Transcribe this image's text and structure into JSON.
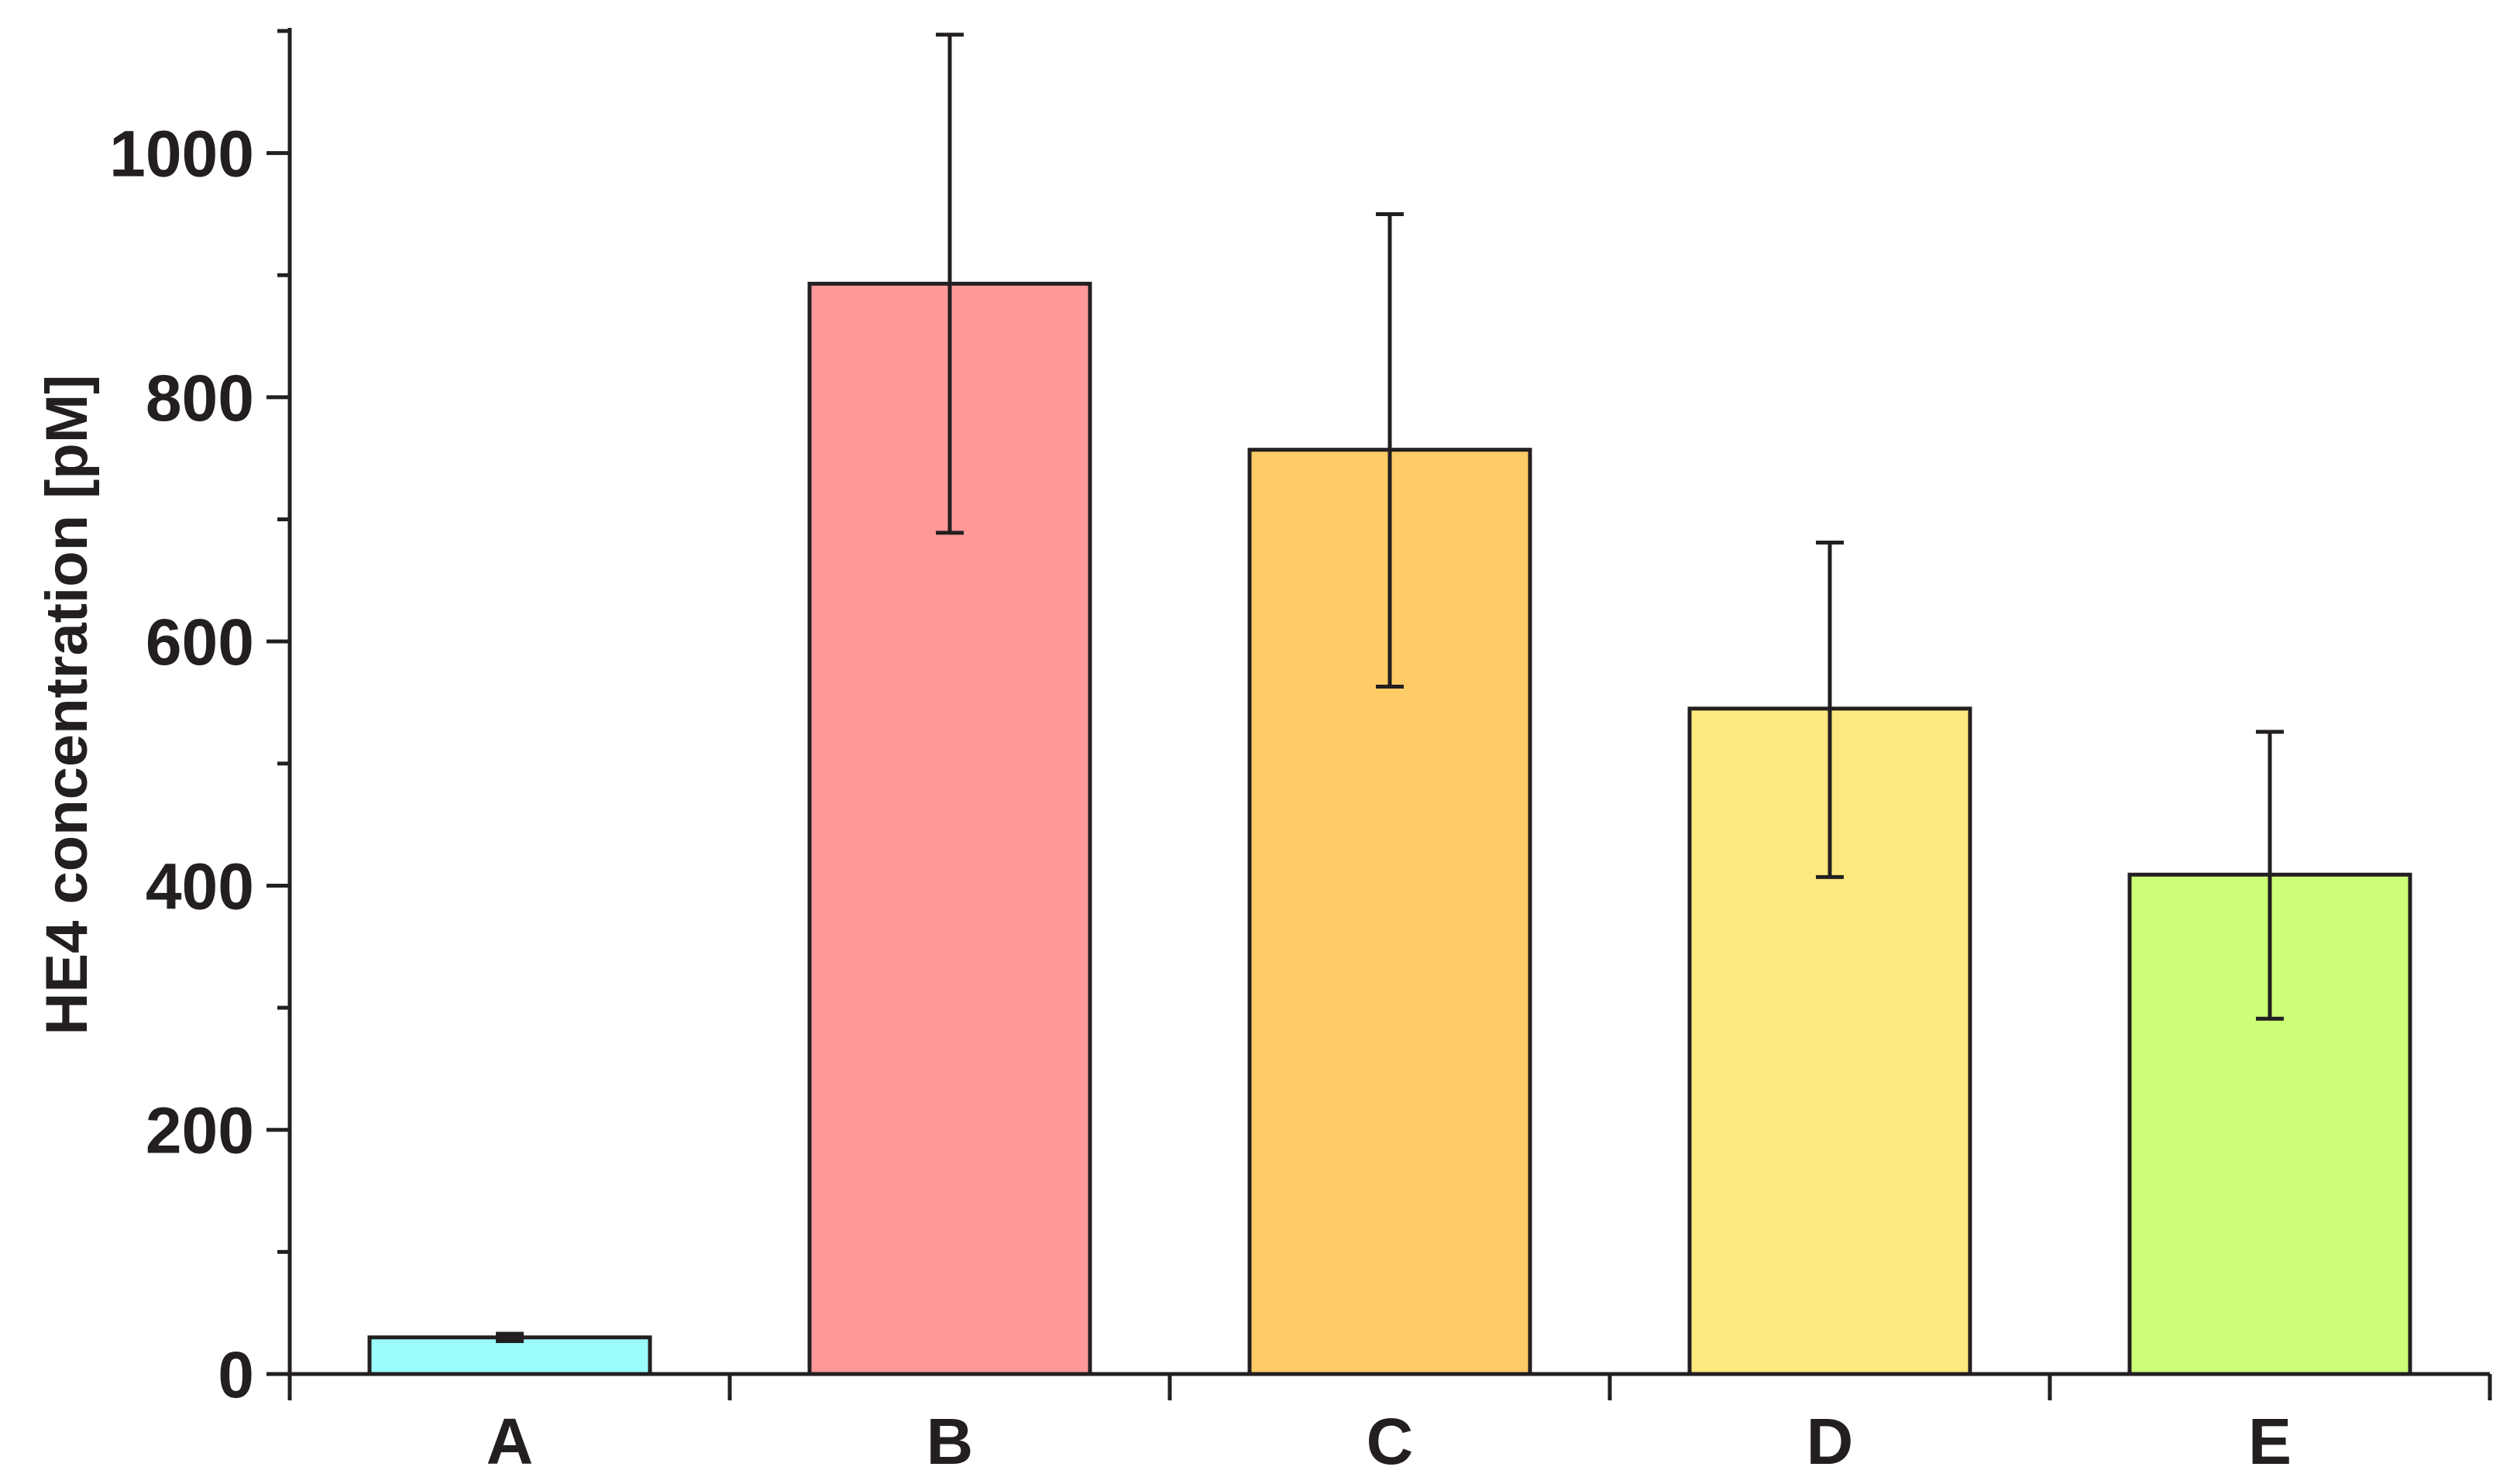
{
  "chart_data": {
    "type": "bar",
    "title": "",
    "xlabel": "",
    "ylabel": "HE4 concentration [pM]",
    "categories": [
      "A",
      "B",
      "C",
      "D",
      "E"
    ],
    "values": [
      30,
      893,
      757,
      545,
      409
    ],
    "error_low": [
      27,
      689,
      563,
      407,
      291
    ],
    "error_high": [
      33,
      1097,
      950,
      681,
      526
    ],
    "bar_colors": [
      "#9afcfb",
      "#ff9898",
      "#fecc66",
      "#fee97f",
      "#ccff77"
    ],
    "ylim": [
      0,
      1100
    ],
    "y_ticks": [
      0,
      200,
      400,
      600,
      800,
      1000
    ],
    "y_minor_ticks": [
      100,
      300,
      500,
      700,
      900,
      1100
    ],
    "grid": false,
    "legend": "none",
    "axis_color": "#231f20"
  }
}
